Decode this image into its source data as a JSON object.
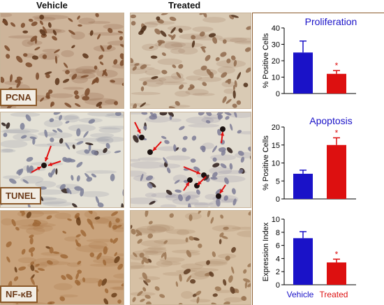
{
  "columns": {
    "vehicle": "Vehicle",
    "treated": "Treated"
  },
  "stains": [
    "PCNA",
    "TUNEL",
    "NF-κB"
  ],
  "colors": {
    "vehicle": "#1a12c8",
    "treated": "#dd1010",
    "title": "#1a12c8",
    "frame": "#8b5a2b"
  },
  "chart_data": [
    {
      "type": "bar",
      "title": "Proliferation",
      "ylabel": "% Positive Cells",
      "categories": [
        "Vehicle",
        "Treated"
      ],
      "values": [
        25,
        12
      ],
      "errors": [
        7,
        2
      ],
      "significance": [
        "",
        "*"
      ],
      "ylim": [
        0,
        40
      ],
      "yticks": [
        0,
        10,
        20,
        30,
        40
      ]
    },
    {
      "type": "bar",
      "title": "Apoptosis",
      "ylabel": "% Positive Cells",
      "categories": [
        "Vehicle",
        "Treated"
      ],
      "values": [
        7,
        15
      ],
      "errors": [
        1,
        2
      ],
      "significance": [
        "",
        "*"
      ],
      "ylim": [
        0,
        20
      ],
      "yticks": [
        0,
        5,
        10,
        15,
        20
      ]
    },
    {
      "type": "bar",
      "title": "",
      "ylabel": "Expression Index",
      "categories": [
        "Vehicle",
        "Treated"
      ],
      "values": [
        7.1,
        3.4
      ],
      "errors": [
        1.0,
        0.5
      ],
      "significance": [
        "",
        "*"
      ],
      "ylim": [
        0,
        10
      ],
      "yticks": [
        0,
        2,
        4,
        6,
        8,
        10
      ]
    }
  ],
  "x_labels": [
    "Vehicle",
    "Treated"
  ]
}
